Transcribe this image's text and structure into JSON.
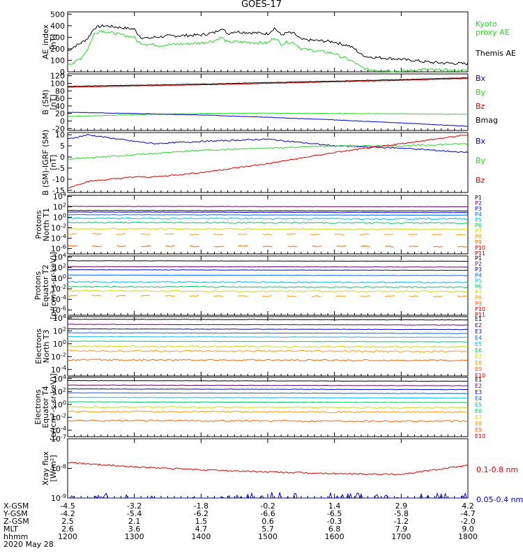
{
  "title": "GOES-17",
  "date_label": "2020 May 28",
  "chart_data": [
    {
      "type": "line",
      "ylabel": [
        "AE_index",
        "[nT]"
      ],
      "yticks": [
        0,
        100,
        200,
        300,
        400,
        500
      ],
      "ylim": [
        0,
        520
      ],
      "legend": [
        {
          "label": "Kyoto",
          "color": "#22dd22"
        },
        {
          "label": "proxy AE",
          "color": "#22dd22"
        },
        {
          "label": "Themis AE",
          "color": "#000000"
        }
      ],
      "series": [
        {
          "name": "Themis AE",
          "color": "#000000",
          "x": [
            1200,
            1210,
            1220,
            1230,
            1240,
            1250,
            1255,
            1300,
            1305,
            1310,
            1320,
            1330,
            1340,
            1350,
            1400,
            1410,
            1420,
            1430,
            1440,
            1450,
            1500,
            1510,
            1520,
            1530,
            1540,
            1550,
            1600,
            1610,
            1620,
            1630,
            1640,
            1650,
            1700,
            1710,
            1720,
            1730,
            1740,
            1750,
            1800
          ],
          "y": [
            180,
            220,
            250,
            290,
            380,
            395,
            400,
            370,
            330,
            300,
            290,
            300,
            305,
            310,
            320,
            330,
            340,
            380,
            330,
            350,
            330,
            380,
            320,
            340,
            330,
            280,
            260,
            240,
            230,
            200,
            150,
            130,
            110,
            100,
            100,
            90,
            85,
            80,
            70
          ]
        },
        {
          "name": "Kyoto proxy AE",
          "color": "#22dd22",
          "x": [
            1200,
            1210,
            1220,
            1230,
            1240,
            1250,
            1255,
            1300,
            1305,
            1310,
            1320,
            1330,
            1340,
            1350,
            1400,
            1410,
            1420,
            1430,
            1440,
            1450,
            1500,
            1510,
            1520,
            1530,
            1540,
            1550,
            1600,
            1610,
            1620,
            1630,
            1640,
            1650,
            1700,
            1710,
            1720,
            1730,
            1740,
            1750,
            1800
          ],
          "y": [
            70,
            80,
            120,
            200,
            330,
            360,
            350,
            300,
            260,
            250,
            240,
            235,
            230,
            235,
            250,
            260,
            270,
            300,
            255,
            260,
            250,
            300,
            240,
            260,
            250,
            200,
            160,
            130,
            110,
            80,
            40,
            20,
            5,
            10,
            15,
            20,
            20,
            15,
            10
          ]
        }
      ]
    },
    {
      "type": "line",
      "ylabel": [
        "B (SM)",
        "[nT]"
      ],
      "yticks": [
        -20,
        0,
        20,
        40,
        60,
        80,
        100,
        120
      ],
      "ylim": [
        -25,
        125
      ],
      "legend": [
        {
          "label": "Bx",
          "color": "#0000cc"
        },
        {
          "label": "By",
          "color": "#22dd22"
        },
        {
          "label": "Bz",
          "color": "#dd0000"
        },
        {
          "label": "Bmag",
          "color": "#000000"
        }
      ],
      "series": [
        {
          "name": "Bz",
          "color": "#dd0000",
          "x": [
            1200,
            1300,
            1400,
            1500,
            1600,
            1700,
            1800
          ],
          "y": [
            90,
            93,
            96,
            100,
            104,
            108,
            113
          ]
        },
        {
          "name": "Bmag",
          "color": "#000000",
          "x": [
            1200,
            1300,
            1400,
            1500,
            1600,
            1700,
            1800
          ],
          "y": [
            92,
            95,
            98,
            102,
            106,
            110,
            115
          ]
        },
        {
          "name": "By",
          "color": "#22dd22",
          "x": [
            1200,
            1300,
            1400,
            1500,
            1600,
            1700,
            1800
          ],
          "y": [
            12,
            17,
            20,
            21,
            20,
            19,
            18
          ]
        },
        {
          "name": "Bx",
          "color": "#0000cc",
          "x": [
            1200,
            1300,
            1400,
            1500,
            1600,
            1700,
            1800
          ],
          "y": [
            23,
            20,
            16,
            10,
            3,
            -5,
            -14
          ]
        }
      ]
    },
    {
      "type": "line",
      "ylabel": [
        "B (SM)-IGRF (SM)",
        "[nT]"
      ],
      "yticks": [
        -15,
        -10,
        -5,
        0,
        5,
        10
      ],
      "ylim": [
        -16,
        11
      ],
      "legend": [
        {
          "label": "Bx",
          "color": "#0000cc"
        },
        {
          "label": "By",
          "color": "#22dd22"
        },
        {
          "label": "Bz",
          "color": "#dd0000"
        }
      ],
      "series": [
        {
          "name": "Bx",
          "color": "#0000cc",
          "x": [
            1200,
            1230,
            1300,
            1330,
            1400,
            1500,
            1600,
            1700,
            1800
          ],
          "y": [
            8,
            10,
            7,
            6,
            7,
            8,
            5,
            4,
            2
          ]
        },
        {
          "name": "By",
          "color": "#22dd22",
          "x": [
            1200,
            1300,
            1400,
            1500,
            1600,
            1700,
            1800
          ],
          "y": [
            -1,
            1,
            3,
            4,
            5,
            5,
            6
          ]
        },
        {
          "name": "Bz",
          "color": "#dd0000",
          "x": [
            1200,
            1230,
            1300,
            1330,
            1400,
            1500,
            1600,
            1700,
            1800
          ],
          "y": [
            -14,
            -11,
            -9,
            -9,
            -7,
            -3,
            2,
            6,
            10
          ]
        }
      ]
    }
  ],
  "flux_panels": [
    {
      "ylabel": [
        "Protons",
        "North T1"
      ],
      "ytick_exps": [
        4,
        2,
        0,
        -2,
        -4,
        -6
      ],
      "labels": [
        {
          "text": "P1",
          "color": "#000000"
        },
        {
          "text": "P2",
          "color": "#660066"
        },
        {
          "text": "P3",
          "color": "#0000cc"
        },
        {
          "text": "P4",
          "color": "#0066ff"
        },
        {
          "text": "P5",
          "color": "#00bbff"
        },
        {
          "text": "P6",
          "color": "#00cc66"
        },
        {
          "text": "P7",
          "color": "#ccdd00"
        },
        {
          "text": "P8",
          "color": "#ff9900"
        },
        {
          "text": "P9",
          "color": "#ff6600"
        },
        {
          "text": "P10",
          "color": "#dd0000"
        },
        {
          "text": "P11",
          "color": "#aa0000"
        }
      ],
      "levels": [
        1.3,
        2.1,
        1.0,
        0.5,
        -0.2,
        -1.0,
        -2.2,
        -3.2,
        -5.5
      ]
    },
    {
      "ylabel": [
        "Protons",
        "Equator T2",
        "[p/(cm²-s-sr-keV)]"
      ],
      "ytick_exps": [
        4,
        2,
        0,
        -2,
        -4,
        -6
      ],
      "labels": [
        {
          "text": "P1",
          "color": "#000000"
        },
        {
          "text": "P2",
          "color": "#660066"
        },
        {
          "text": "P3",
          "color": "#0000cc"
        },
        {
          "text": "P4",
          "color": "#0066ff"
        },
        {
          "text": "P5",
          "color": "#00bbff"
        },
        {
          "text": "P6",
          "color": "#00cc66"
        },
        {
          "text": "P7",
          "color": "#ccdd00"
        },
        {
          "text": "P8",
          "color": "#ff9900"
        },
        {
          "text": "P9",
          "color": "#ff6600"
        },
        {
          "text": "P10",
          "color": "#dd0000"
        },
        {
          "text": "P11",
          "color": "#aa0000"
        }
      ],
      "levels": [
        3.3,
        2.2,
        1.6,
        0.6,
        -0.7,
        -1.6,
        -2.4,
        -3.3
      ]
    },
    {
      "ylabel": [
        "Electrons",
        "North T3"
      ],
      "ytick_exps": [
        4,
        2,
        0,
        -2,
        -4
      ],
      "labels": [
        {
          "text": "E1",
          "color": "#000000"
        },
        {
          "text": "E2",
          "color": "#660066"
        },
        {
          "text": "E3",
          "color": "#0000cc"
        },
        {
          "text": "E4",
          "color": "#0066ff"
        },
        {
          "text": "E5",
          "color": "#00bbff"
        },
        {
          "text": "E6",
          "color": "#00cc66"
        },
        {
          "text": "E7",
          "color": "#ccdd00"
        },
        {
          "text": "E8",
          "color": "#ff9900"
        },
        {
          "text": "E9",
          "color": "#ff6600"
        },
        {
          "text": "E10",
          "color": "#dd0000"
        }
      ],
      "levels": [
        3.8,
        3.0,
        2.3,
        1.7,
        1.1,
        0.4,
        -0.4,
        -1.1,
        -2.5
      ]
    },
    {
      "ylabel": [
        "Electrons",
        "Equator T4",
        "[e/(cm²-s-sr-keV)]"
      ],
      "ytick_exps": [
        4,
        2,
        0,
        -2,
        -4
      ],
      "labels": [
        {
          "text": "E1",
          "color": "#000000"
        },
        {
          "text": "E2",
          "color": "#660066"
        },
        {
          "text": "E3",
          "color": "#0000cc"
        },
        {
          "text": "E4",
          "color": "#0066ff"
        },
        {
          "text": "E5",
          "color": "#00bbff"
        },
        {
          "text": "E6",
          "color": "#00cc66"
        },
        {
          "text": "E7",
          "color": "#ccdd00"
        },
        {
          "text": "E8",
          "color": "#ff9900"
        },
        {
          "text": "E9",
          "color": "#ff6600"
        },
        {
          "text": "E10",
          "color": "#dd0000"
        }
      ],
      "levels": [
        3.7,
        3.0,
        2.4,
        1.8,
        1.1,
        0.4,
        -0.4,
        -1.1,
        -2.5
      ]
    }
  ],
  "xray_panel": {
    "ylabel": [
      "Xray flux",
      "[W/m²]"
    ],
    "ytick_exps": [
      -7,
      -8,
      -9
    ],
    "labels": [
      {
        "text": "0.1-0.8 nm",
        "color": "#dd0000"
      },
      {
        "text": "0.05-0.4 nm",
        "color": "#0000cc"
      }
    ],
    "long_channel": {
      "x": [
        1200,
        1300,
        1400,
        1500,
        1600,
        1700,
        1800
      ],
      "y_exp": [
        -7.8,
        -7.95,
        -8.05,
        -8.12,
        -8.18,
        -8.2,
        -7.9
      ]
    },
    "short_channel_exp": -9.2
  },
  "x_axis": {
    "rows": [
      {
        "name": "X-GSM",
        "values": [
          "-4.5",
          "-3.2",
          "-1.8",
          "-0.2",
          "1.4",
          "2.9",
          "4.2"
        ]
      },
      {
        "name": "Y-GSM",
        "values": [
          "-4.2",
          "-5.4",
          "-6.2",
          "-6.6",
          "-6.5",
          "-5.8",
          "-4.7"
        ]
      },
      {
        "name": "Z-GSM",
        "values": [
          "2.5",
          "2.1",
          "1.5",
          "0.6",
          "-0.3",
          "-1.2",
          "-2.0"
        ]
      },
      {
        "name": "MLT",
        "values": [
          "2.6",
          "3.6",
          "4.7",
          "5.7",
          "6.8",
          "7.9",
          "9.0"
        ]
      },
      {
        "name": "hhmm",
        "values": [
          "1200",
          "1300",
          "1400",
          "1500",
          "1600",
          "1700",
          "1800"
        ]
      }
    ]
  }
}
